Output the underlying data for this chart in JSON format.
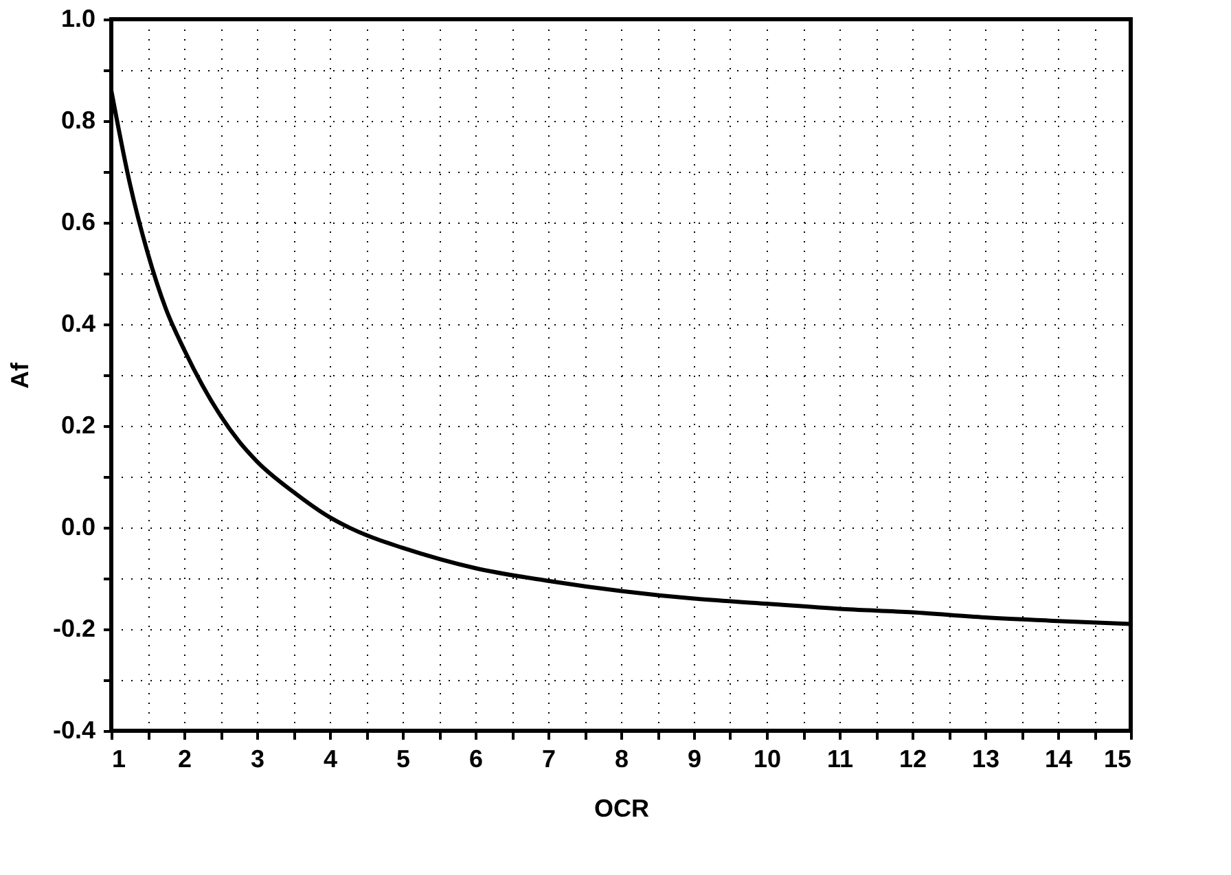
{
  "chart_data": {
    "type": "line",
    "xlabel": "OCR",
    "ylabel": "Af",
    "x": [
      1,
      1.25,
      1.5,
      1.75,
      2,
      2.25,
      2.5,
      2.75,
      3,
      3.5,
      4,
      4.5,
      5,
      6,
      7,
      8,
      9,
      10,
      11,
      12,
      13,
      14,
      15
    ],
    "series": [
      {
        "color": "#000000",
        "values": [
          0.86,
          0.68,
          0.54,
          0.43,
          0.35,
          0.28,
          0.22,
          0.17,
          0.13,
          0.07,
          0.02,
          -0.015,
          -0.04,
          -0.08,
          -0.105,
          -0.125,
          -0.14,
          -0.15,
          -0.16,
          -0.167,
          -0.177,
          -0.184,
          -0.19
        ]
      }
    ],
    "xlim": [
      1,
      15
    ],
    "xticks": [
      1,
      {
        "value": 1.5,
        "label": null
      },
      2,
      {
        "value": 2.5,
        "label": null
      },
      3,
      {
        "value": 3.5,
        "label": null
      },
      4,
      {
        "value": 4.5,
        "label": null
      },
      5,
      {
        "value": 5.5,
        "label": null
      },
      6,
      {
        "value": 6.5,
        "label": null
      },
      7,
      {
        "value": 7.5,
        "label": null
      },
      8,
      {
        "value": 8.5,
        "label": null
      },
      9,
      {
        "value": 9.5,
        "label": null
      },
      10,
      {
        "value": 10.5,
        "label": null
      },
      11,
      {
        "value": 11.5,
        "label": null
      },
      12,
      {
        "value": 12.5,
        "label": null
      },
      13,
      {
        "value": 13.5,
        "label": null
      },
      14,
      {
        "value": 14.5,
        "label": null
      },
      15
    ],
    "ylim": [
      -0.4,
      1.0
    ],
    "yticks": [
      {
        "value": -0.4,
        "label": "-0.4"
      },
      {
        "value": -0.3,
        "label": null
      },
      {
        "value": -0.2,
        "label": "-0.2"
      },
      {
        "value": -0.1,
        "label": null
      },
      {
        "value": 0,
        "label": "0.0"
      },
      {
        "value": 0.1,
        "label": null
      },
      {
        "value": 0.2,
        "label": "0.2"
      },
      {
        "value": 0.3,
        "label": null
      },
      {
        "value": 0.4,
        "label": "0.4"
      },
      {
        "value": 0.5,
        "label": null
      },
      {
        "value": 0.6,
        "label": "0.6"
      },
      {
        "value": 0.7,
        "label": null
      },
      {
        "value": 0.8,
        "label": "0.8"
      },
      {
        "value": 0.9,
        "label": null
      },
      {
        "value": 1.0,
        "label": "1.0"
      }
    ],
    "grid": true,
    "legend": false,
    "marker": "none",
    "line_style": "solid"
  }
}
